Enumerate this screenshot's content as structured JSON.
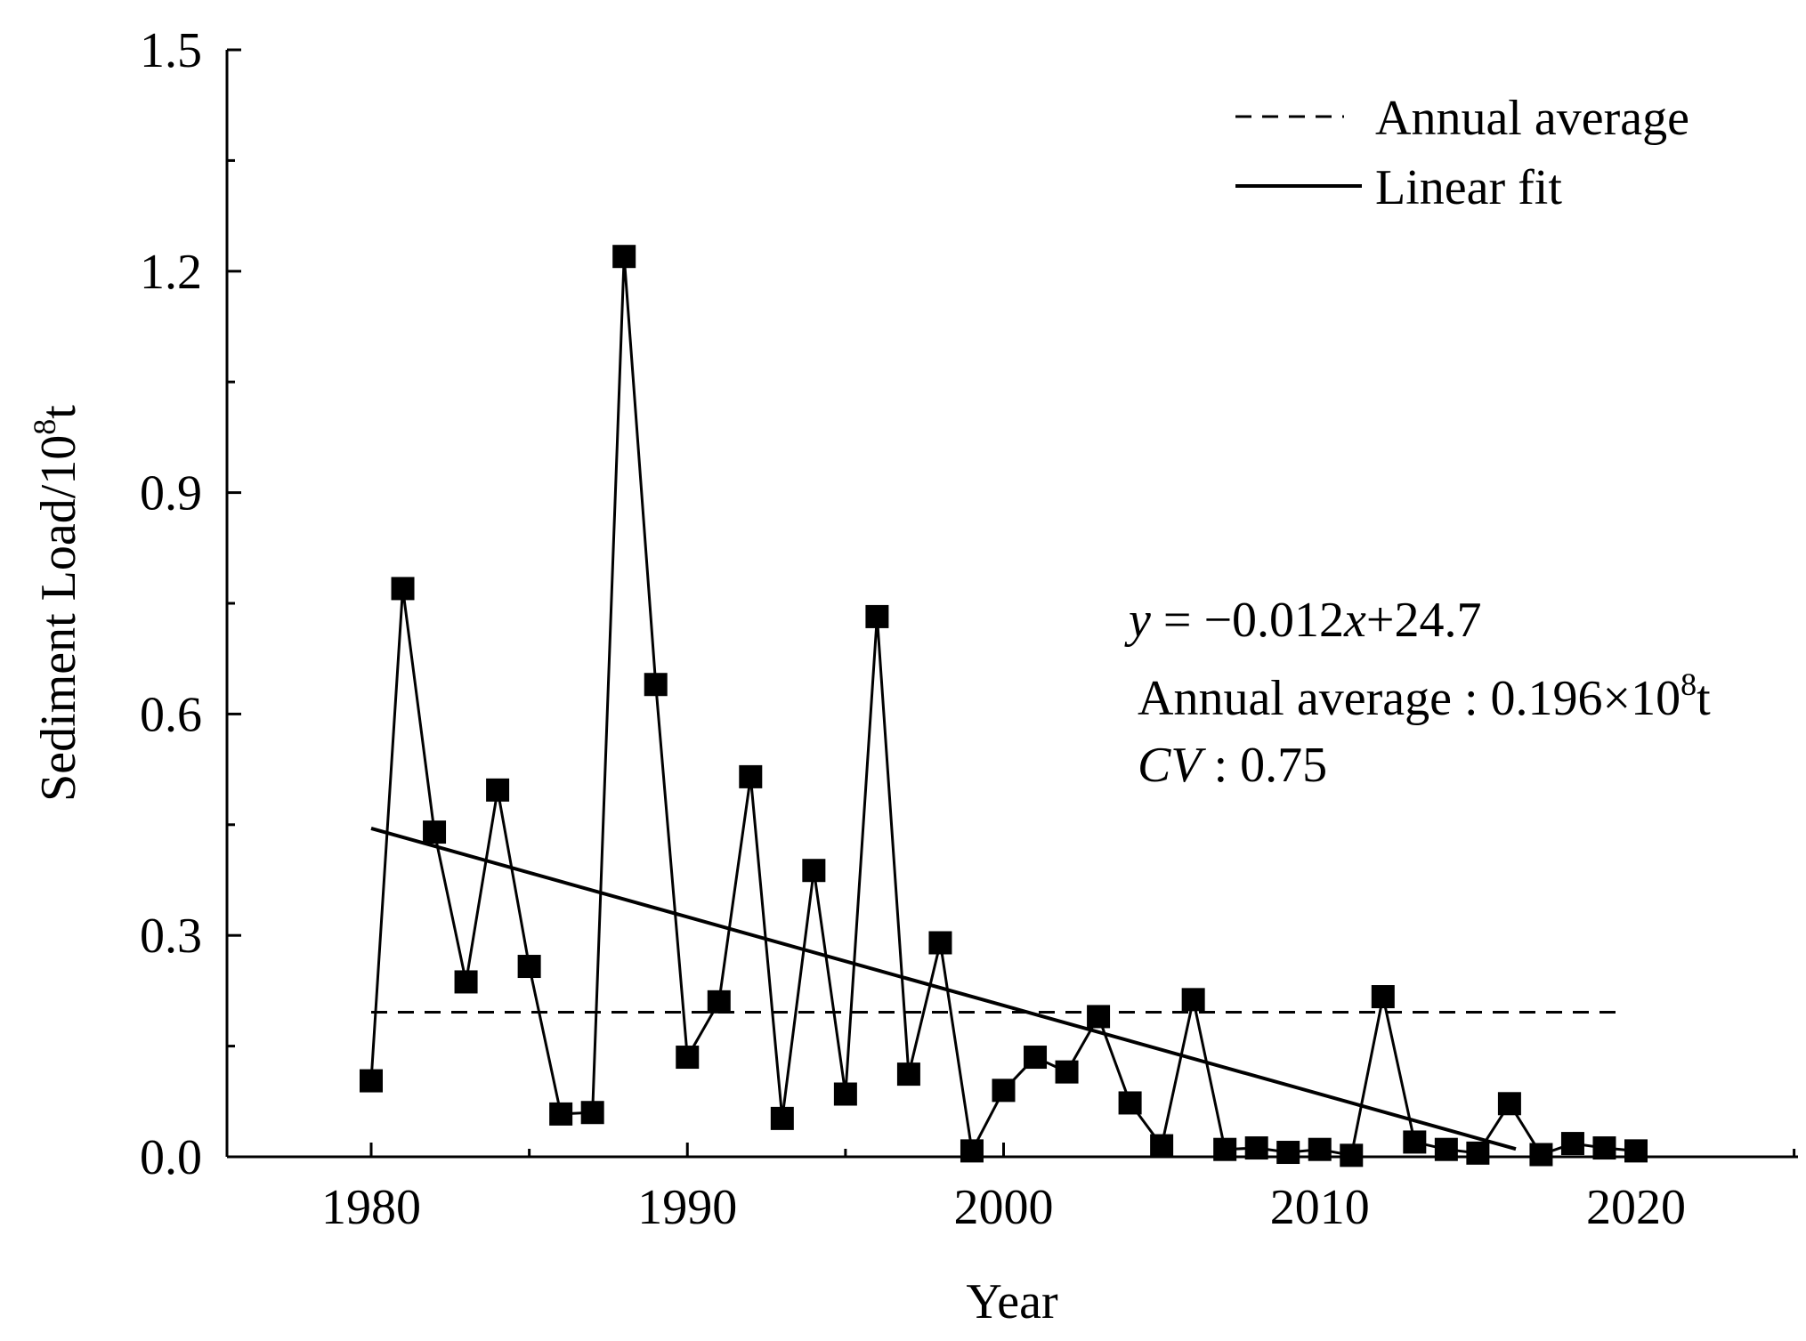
{
  "chart_data": {
    "type": "line",
    "title": "",
    "xlabel": "Year",
    "ylabel": "Sediment Load/10",
    "ylabel_superscript": "8",
    "ylabel_suffix": "t",
    "xlim": [
      1975,
      2025
    ],
    "ylim": [
      0,
      1.5
    ],
    "x_ticks": [
      1980,
      1990,
      2000,
      2010,
      2020
    ],
    "x_tick_labels": [
      "1980",
      "1990",
      "2000",
      "2010",
      "2020"
    ],
    "y_ticks": [
      0,
      0.3,
      0.6,
      0.9,
      1.2,
      1.5
    ],
    "y_tick_labels": [
      "0.0",
      "0.3",
      "0.6",
      "0.9",
      "1.2",
      "1.5"
    ],
    "grid": false,
    "legend_position": "top-right",
    "series": [
      {
        "name": "Sediment load",
        "marker": "square",
        "x": [
          1980,
          1981,
          1982,
          1983,
          1984,
          1985,
          1986,
          1987,
          1988,
          1989,
          1990,
          1991,
          1992,
          1993,
          1994,
          1995,
          1996,
          1997,
          1998,
          1999,
          2000,
          2001,
          2002,
          2003,
          2004,
          2005,
          2006,
          2007,
          2008,
          2009,
          2010,
          2011,
          2012,
          2013,
          2014,
          2015,
          2016,
          2017,
          2018,
          2019,
          2020
        ],
        "y": [
          0.103,
          0.77,
          0.44,
          0.237,
          0.497,
          0.258,
          0.058,
          0.06,
          1.22,
          0.64,
          0.135,
          0.21,
          0.515,
          0.052,
          0.388,
          0.085,
          0.732,
          0.112,
          0.29,
          0.008,
          0.09,
          0.135,
          0.115,
          0.19,
          0.073,
          0.015,
          0.213,
          0.01,
          0.012,
          0.006,
          0.01,
          0.002,
          0.217,
          0.02,
          0.01,
          0.005,
          0.072,
          0.003,
          0.018,
          0.012,
          0.008
        ]
      }
    ],
    "annual_average": {
      "name": "Annual average",
      "value": 0.196,
      "x_range": [
        1980,
        2019.5
      ]
    },
    "linear_fit": {
      "name": "Linear fit",
      "slope": -0.012,
      "intercept": 24.7,
      "x_range": [
        1980,
        2016.2
      ],
      "start_value": 0.445
    },
    "legend": [
      {
        "label": "Annual average",
        "style": "dashed"
      },
      {
        "label": "Linear fit",
        "style": "solid"
      }
    ],
    "annotations": {
      "equation_y": "y",
      "equation_eq": " = −0.012",
      "equation_x": "x",
      "equation_rest": "+24.7",
      "average_label": "Annual average",
      "average_colon": " : ",
      "average_value": "0.196×10",
      "average_sup": "8",
      "average_unit": "t",
      "cv_label": "CV",
      "cv_value": " : 0.75"
    }
  }
}
